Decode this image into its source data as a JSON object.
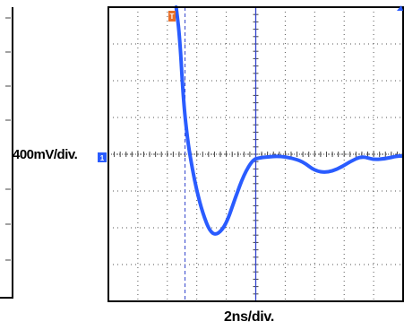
{
  "chart_data": {
    "type": "line",
    "title": "",
    "ylabel": "400mV/div.",
    "xlabel": "2ns/div.",
    "x_divisions": 10,
    "y_divisions": 8,
    "xlim": [
      0,
      10
    ],
    "ylim": [
      -4,
      4
    ],
    "grid": true,
    "markers": {
      "trigger": "T",
      "channel": "1"
    },
    "series": [
      {
        "color": "#2a5cff",
        "x": [
          2.3,
          2.42,
          2.55,
          2.7,
          2.85,
          3.0,
          3.2,
          3.45,
          3.7,
          4.0,
          4.3,
          4.6,
          4.9,
          5.1,
          5.4,
          5.8,
          6.2,
          6.6,
          7.0,
          7.4,
          7.8,
          8.2,
          8.6,
          9.0,
          9.4,
          9.8,
          10.0
        ],
        "y": [
          5.0,
          3.2,
          1.4,
          0.3,
          -0.4,
          -1.0,
          -1.6,
          -2.12,
          -2.2,
          -1.9,
          -1.2,
          -0.55,
          -0.15,
          -0.1,
          -0.07,
          -0.05,
          -0.1,
          -0.2,
          -0.45,
          -0.5,
          -0.4,
          -0.2,
          -0.05,
          -0.15,
          -0.12,
          -0.05,
          -0.05
        ]
      }
    ]
  },
  "colors": {
    "trace": "#2a5cff",
    "grid": "#555555",
    "cursor": "#3344cc"
  }
}
